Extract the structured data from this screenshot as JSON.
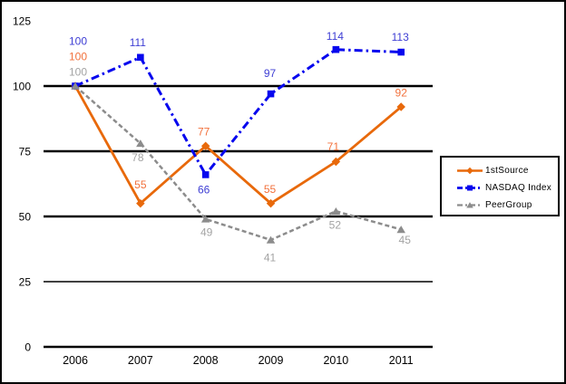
{
  "chart_data": {
    "type": "line",
    "title": "",
    "xlabel": "",
    "ylabel": "",
    "x_categories": [
      "2006",
      "2007",
      "2008",
      "2009",
      "2010",
      "2011"
    ],
    "y_ticks": [
      0,
      25,
      50,
      75,
      100,
      125
    ],
    "ylim": [
      0,
      125
    ],
    "grid": "horizontal-only",
    "grid_color": "#000000",
    "background_color": "#ffffff",
    "legend_position": "middle-right",
    "series": [
      {
        "name": "1stSource",
        "values": [
          100,
          55,
          77,
          55,
          71,
          92
        ],
        "color": "#E8690B",
        "label_color": "#F2713C",
        "line_style": "solid",
        "marker": "diamond",
        "label_dx": [
          3,
          0,
          -2,
          -1,
          -3,
          0
        ],
        "label_dy": [
          -33,
          -21,
          -16,
          -16,
          -17,
          -16
        ]
      },
      {
        "name": "NASDAQ Index",
        "values": [
          100,
          111,
          66,
          97,
          114,
          113
        ],
        "color": "#0707EE",
        "label_color": "#3E3ED4",
        "line_style": "dash-dot",
        "marker": "square",
        "label_dx": [
          3,
          -3,
          -2,
          -1,
          -1,
          -1
        ],
        "label_dy": [
          -50,
          -17,
          16,
          -23,
          -15,
          -17
        ]
      },
      {
        "name": "PeerGroup",
        "values": [
          100,
          78,
          49,
          41,
          52,
          45
        ],
        "color": "#8C8C8C",
        "label_color": "#A3A3A3",
        "line_style": "dashed",
        "marker": "triangle",
        "label_dx": [
          3,
          -3,
          1,
          -1,
          -1,
          4
        ],
        "label_dy": [
          -16,
          15,
          14,
          19,
          15,
          11
        ]
      }
    ]
  }
}
